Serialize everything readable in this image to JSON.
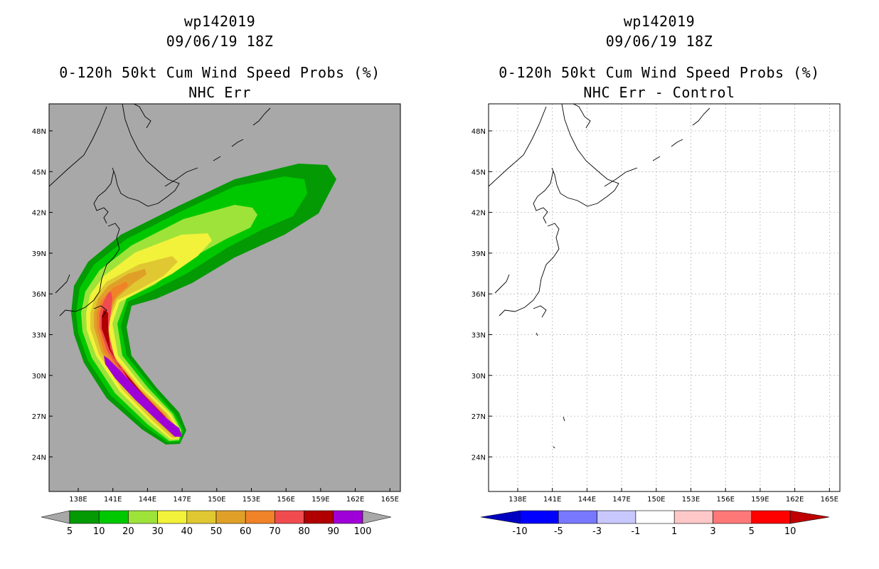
{
  "colors": {
    "ocean_left": "#a8a8a8",
    "bins": [
      "#049a04",
      "#00c800",
      "#9ee33a",
      "#f2f23a",
      "#e0c832",
      "#e0a028",
      "#f08228",
      "#f04c50",
      "#b00000",
      "#a000d8"
    ],
    "diff_bins": [
      "#0000c0",
      "#0000ff",
      "#7878ff",
      "#c8c8ff",
      "#ffffff",
      "#ffc8c8",
      "#ff7878",
      "#ff0000",
      "#c00000"
    ]
  },
  "left": {
    "title_line1": "wp142019",
    "title_line2": "09/06/19 18Z",
    "title_line3": "0-120h 50kt Cum Wind Speed Probs (%)",
    "title_line4": "NHC Err",
    "colorbar_labels": [
      "5",
      "10",
      "20",
      "30",
      "40",
      "50",
      "60",
      "70",
      "80",
      "90",
      "100"
    ]
  },
  "right": {
    "title_line1": "wp142019",
    "title_line2": "09/06/19 18Z",
    "title_line3": "0-120h 50kt Cum Wind Speed Probs (%)",
    "title_line4": "NHC Err - Control",
    "colorbar_labels": [
      "-10",
      "-5",
      "-3",
      "-1",
      "1",
      "3",
      "5",
      "10"
    ]
  },
  "axes": {
    "lat_labels": [
      "48N",
      "45N",
      "42N",
      "39N",
      "36N",
      "33N",
      "30N",
      "27N",
      "24N"
    ],
    "lon_labels": [
      "138E",
      "141E",
      "144E",
      "147E",
      "150E",
      "153E",
      "156E",
      "159E",
      "162E",
      "165E"
    ]
  }
}
